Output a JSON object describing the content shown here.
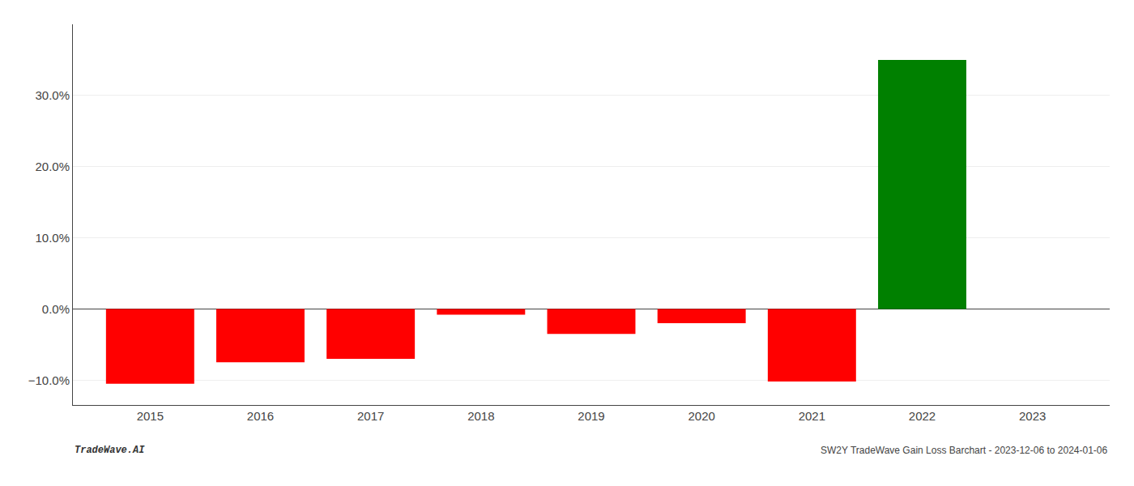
{
  "chart_data": {
    "type": "bar",
    "x": [
      2015,
      2016,
      2017,
      2018,
      2019,
      2020,
      2021,
      2022,
      2023
    ],
    "values": [
      -10.5,
      -7.5,
      -7.0,
      -0.8,
      -3.5,
      -2.0,
      -10.2,
      35.0,
      0.0
    ],
    "colors": [
      "#ff0000",
      "#ff0000",
      "#ff0000",
      "#ff0000",
      "#ff0000",
      "#ff0000",
      "#ff0000",
      "#008000",
      "#ffffff"
    ],
    "xlim": [
      2014.3,
      2023.7
    ],
    "xticks": [
      2015,
      2016,
      2017,
      2018,
      2019,
      2020,
      2021,
      2022,
      2023
    ],
    "ylim": [
      -13.5,
      40.0
    ],
    "yticks": [
      {
        "value": -10.0,
        "label": "−10.0%"
      },
      {
        "value": 0.0,
        "label": "0.0%"
      },
      {
        "value": 10.0,
        "label": "10.0%"
      },
      {
        "value": 20.0,
        "label": "20.0%"
      },
      {
        "value": 30.0,
        "label": "30.0%"
      }
    ],
    "grid": true,
    "annotations": [
      "TradeWave.AI",
      "SW2Y TradeWave Gain Loss Barchart - 2023-12-06 to 2024-01-06"
    ]
  }
}
